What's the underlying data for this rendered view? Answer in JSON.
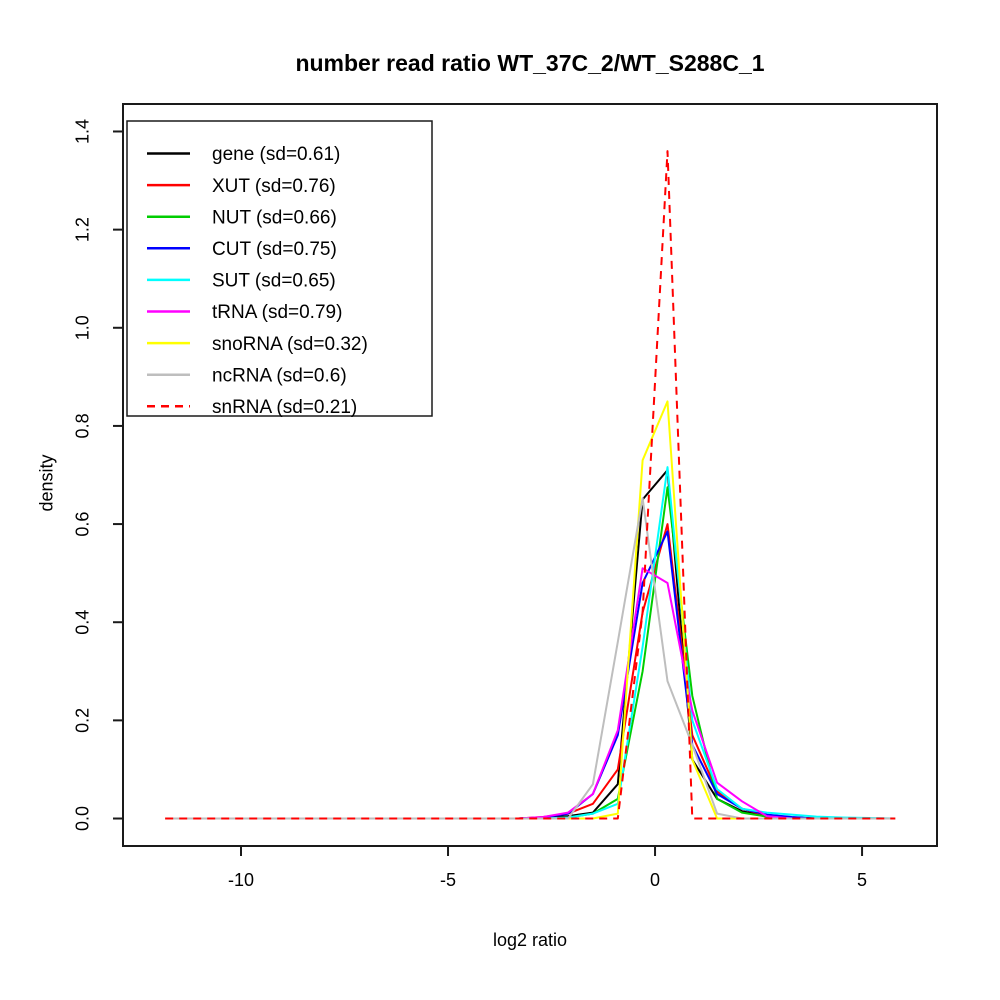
{
  "chart_data": {
    "type": "line",
    "title": "number read ratio WT_37C_2/WT_S288C_1",
    "xlabel": "log2 ratio",
    "ylabel": "density",
    "grid": false,
    "legend_position": "top-left",
    "xlim": [
      -12.85,
      6.81
    ],
    "ylim": [
      -0.056,
      1.456
    ],
    "x_ticks": [
      -10,
      -5,
      0,
      5
    ],
    "x_tick_labels": [
      "-10",
      "-5",
      "0",
      "5"
    ],
    "y_ticks": [
      0.0,
      0.2,
      0.4,
      0.6,
      0.8,
      1.0,
      1.2,
      1.4
    ],
    "y_tick_labels": [
      "0.0",
      "0.2",
      "0.4",
      "0.6",
      "0.8",
      "1.0",
      "1.2",
      "1.4"
    ],
    "x": [
      -11.83,
      -4.5,
      -3.9,
      -3.3,
      -2.7,
      -2.1,
      -1.5,
      -0.9,
      -0.3,
      0.3,
      0.9,
      1.5,
      2.1,
      2.7,
      3.3,
      3.9,
      4.5,
      5.8
    ],
    "series": [
      {
        "name": "gene",
        "sd": 0.61,
        "label": "gene (sd=0.61)",
        "color": "#000000",
        "linetype": "solid",
        "values": [
          0,
          0,
          0,
          0,
          0.002,
          0.005,
          0.012,
          0.07,
          0.65,
          0.71,
          0.12,
          0.04,
          0.015,
          0.005,
          0.002,
          0,
          0,
          0
        ]
      },
      {
        "name": "XUT",
        "sd": 0.76,
        "label": "XUT (sd=0.76)",
        "color": "#FF0000",
        "linetype": "solid",
        "values": [
          0,
          0,
          0,
          0,
          0.003,
          0.01,
          0.03,
          0.1,
          0.42,
          0.6,
          0.17,
          0.055,
          0.02,
          0.006,
          0.002,
          0,
          0,
          0
        ]
      },
      {
        "name": "NUT",
        "sd": 0.66,
        "label": "NUT (sd=0.66)",
        "color": "#00CD00",
        "linetype": "solid",
        "values": [
          0,
          0,
          0,
          0,
          0,
          0.002,
          0.01,
          0.04,
          0.3,
          0.675,
          0.25,
          0.04,
          0.012,
          0.004,
          0,
          0,
          0,
          0
        ]
      },
      {
        "name": "CUT",
        "sd": 0.75,
        "label": "CUT (sd=0.75)",
        "color": "#0000FF",
        "linetype": "solid",
        "values": [
          0,
          0,
          0,
          0,
          0.002,
          0.01,
          0.05,
          0.17,
          0.48,
          0.585,
          0.15,
          0.05,
          0.02,
          0.008,
          0.003,
          0,
          0,
          0
        ]
      },
      {
        "name": "SUT",
        "sd": 0.65,
        "label": "SUT (sd=0.65)",
        "color": "#00FFFF",
        "linetype": "solid",
        "values": [
          0,
          0,
          0,
          0,
          0,
          0.002,
          0.01,
          0.03,
          0.35,
          0.716,
          0.2,
          0.06,
          0.02,
          0.012,
          0.008,
          0.004,
          0.002,
          0
        ]
      },
      {
        "name": "tRNA",
        "sd": 0.79,
        "label": "tRNA (sd=0.79)",
        "color": "#FF00FF",
        "linetype": "solid",
        "values": [
          0,
          0,
          0,
          0,
          0.003,
          0.012,
          0.05,
          0.18,
          0.51,
          0.48,
          0.22,
          0.073,
          0.035,
          0.005,
          0,
          0,
          0,
          0
        ]
      },
      {
        "name": "snoRNA",
        "sd": 0.32,
        "label": "snoRNA (sd=0.32)",
        "color": "#FFFF00",
        "linetype": "solid",
        "values": [
          0,
          0,
          0,
          0,
          0,
          0,
          0,
          0.01,
          0.73,
          0.85,
          0.12,
          0,
          0,
          0,
          0,
          0,
          0,
          0
        ]
      },
      {
        "name": "ncRNA",
        "sd": 0.6,
        "label": "ncRNA (sd=0.6)",
        "color": "#BEBEBE",
        "linetype": "solid",
        "values": [
          0,
          0,
          0,
          0,
          0,
          0,
          0.07,
          0.36,
          0.653,
          0.28,
          0.15,
          0.01,
          0,
          0,
          0,
          0,
          0,
          0
        ]
      },
      {
        "name": "snRNA",
        "sd": 0.21,
        "label": "snRNA (sd=0.21)",
        "color": "#FF0000",
        "linetype": "dashed",
        "values": [
          0,
          0,
          0,
          0,
          0,
          0,
          0,
          0,
          0.42,
          1.36,
          0,
          0,
          0,
          0,
          0,
          0,
          0,
          0
        ]
      }
    ]
  }
}
